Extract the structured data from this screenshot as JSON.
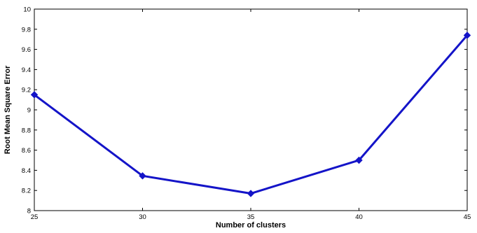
{
  "chart_data": {
    "type": "line",
    "title": "",
    "xlabel": "Number of clusters",
    "ylabel": "Root Mean Square Error",
    "x": [
      25,
      30,
      35,
      40,
      45
    ],
    "xticks": [
      "25",
      "30",
      "35",
      "40",
      "45"
    ],
    "xlim": [
      25,
      45
    ],
    "ylim": [
      8,
      10
    ],
    "yticks": [
      "8",
      "8.2",
      "8.4",
      "8.6",
      "8.8",
      "9",
      "9.2",
      "9.4",
      "9.6",
      "9.8",
      "10"
    ],
    "grid": false,
    "series": [
      {
        "values": [
          9.15,
          8.345,
          8.17,
          8.5,
          9.74
        ],
        "color": "#1414c8",
        "marker": "diamond"
      }
    ]
  }
}
